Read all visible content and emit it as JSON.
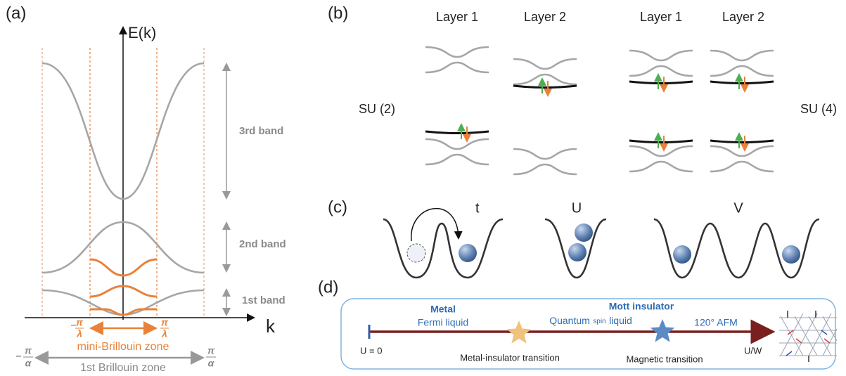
{
  "panel_a": {
    "label": "(a)",
    "y_axis": "E(k)",
    "x_axis": "k",
    "bands": [
      "3rd band",
      "2nd band",
      "1st band"
    ],
    "mini_zone": {
      "left": {
        "sign": "−",
        "numerator": "π",
        "denominator": "λ"
      },
      "right": {
        "numerator": "π",
        "denominator": "λ"
      },
      "label": "mini-Brillouin  zone"
    },
    "first_zone": {
      "left": {
        "sign": "−",
        "numerator": "π",
        "denominator": "α"
      },
      "right": {
        "numerator": "π",
        "denominator": "α"
      },
      "label": "1st Brillouin  zone"
    }
  },
  "panel_b": {
    "label": "(b)",
    "layers": [
      "Layer 1",
      "Layer 2",
      "Layer 1",
      "Layer 2"
    ],
    "left": "SU (2)",
    "right": "SU (4)"
  },
  "panel_c": {
    "label": "(c)",
    "terms": [
      "t",
      "U",
      "V"
    ]
  },
  "panel_d": {
    "label": "(d)",
    "metal": "Metal",
    "fermi_liquid": "Fermi liquid",
    "mott_insulator": "Mott insulator",
    "qsl": [
      "Quantum",
      "spin",
      "liquid"
    ],
    "afm": "120° AFM",
    "start": "U = 0",
    "end": "U/W",
    "transitions": [
      "Metal-insulator transition",
      "Magnetic transition"
    ]
  }
}
